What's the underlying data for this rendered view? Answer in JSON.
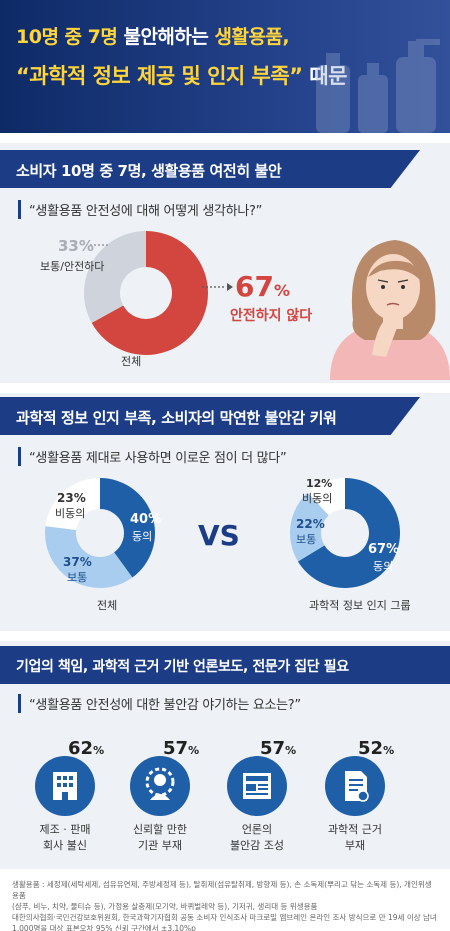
{
  "header": {
    "line1_a": "10명 중 7명",
    "line1_b": " 불안해하는 ",
    "line1_c": "생활용품,",
    "line2_a": "“과학적 정보 제공 및 인지 부족”",
    "line2_b": " 때문"
  },
  "section1": {
    "title": "소비자 10명 중 7명, 생활용품 여전히 불안",
    "question": "“생활용품 안전성에 대해 어떻게 생각하나?”",
    "big_pct": "67",
    "big_unit": "%",
    "big_label": "안전하지 않다",
    "small_pct": "33%",
    "small_label": "보통/안전하다",
    "caption": "전체"
  },
  "section2": {
    "title": "과학적 정보 인지 부족, 소비자의 막연한 불안감 키워",
    "question": "“생활용품 제대로 사용하면 이로운 점이 더 많다”",
    "vs": "VS",
    "left": {
      "caption": "전체",
      "agree_pct": "40%",
      "agree_label": "동의",
      "neutral_pct": "37%",
      "neutral_label": "보통",
      "disagree_pct": "23%",
      "disagree_label": "비동의"
    },
    "right": {
      "caption": "과학적 정보 인지 그룹",
      "agree_pct": "67%",
      "agree_label": "동의",
      "neutral_pct": "22%",
      "neutral_label": "보통",
      "disagree_pct": "12%",
      "disagree_label": "비동의"
    }
  },
  "section3": {
    "title": "기업의 책임, 과학적 근거 기반 언론보도, 전문가 집단 필요",
    "question": "“생활용품 안전성에 대한 불안감 야기하는 요소는?”",
    "factors": [
      {
        "pct": "62",
        "unit": "%",
        "label1": "제조 · 판매",
        "label2": "회사 불신",
        "icon": "building-icon"
      },
      {
        "pct": "57",
        "unit": "%",
        "label1": "신뢰할 만한",
        "label2": "기관 부재",
        "icon": "expert-icon"
      },
      {
        "pct": "57",
        "unit": "%",
        "label1": "언론의",
        "label2": "불안감 조성",
        "icon": "newspaper-icon"
      },
      {
        "pct": "52",
        "unit": "%",
        "label1": "과학적 근거",
        "label2": "부재",
        "icon": "document-icon"
      }
    ]
  },
  "footnote": {
    "line1": "생활용품 : 세정제(세탁세제, 섬유유연제, 주방세정제 등), 탈취제(섬유탈취제, 방향제 등), 손 소독제(뿌리고 닦는 소독제 등), 개인위생용품",
    "line2": "(샴푸, 비누, 치약, 물티슈 등), 가정용 살충제(모기약, 바퀴벌레약 등), 기저귀, 생리대 등 위생용품",
    "line3": "대한의사협회·국민건강보호위원회, 한국과학기자협회 공동 소비자 인식조사 마크로밀 엠브레인 온라인 조사 방식으로 만 19세 이상 남녀",
    "line4": "1,000명을 대상 표본오차 95% 신뢰 구간에서 ±3.10%p"
  },
  "chart_data": [
    {
      "type": "pie",
      "title": "생활용품 안전성에 대해 어떻게 생각하나?",
      "categories": [
        "안전하지 않다",
        "보통/안전하다"
      ],
      "values": [
        67,
        33
      ],
      "caption": "전체"
    },
    {
      "type": "pie",
      "title": "생활용품 제대로 사용하면 이로운 점이 더 많다 (전체)",
      "categories": [
        "동의",
        "보통",
        "비동의"
      ],
      "values": [
        40,
        37,
        23
      ],
      "caption": "전체"
    },
    {
      "type": "pie",
      "title": "생활용품 제대로 사용하면 이로운 점이 더 많다 (과학적 정보 인지 그룹)",
      "categories": [
        "동의",
        "보통",
        "비동의"
      ],
      "values": [
        67,
        22,
        12
      ],
      "caption": "과학적 정보 인지 그룹"
    },
    {
      "type": "bar",
      "title": "생활용품 안전성에 대한 불안감 야기하는 요소는?",
      "categories": [
        "제조 · 판매 회사 불신",
        "신뢰할 만한 기관 부재",
        "언론의 불안감 조성",
        "과학적 근거 부재"
      ],
      "values": [
        62,
        57,
        57,
        52
      ]
    }
  ],
  "colors": {
    "navy": "#1c3d86",
    "red": "#d2463f",
    "blue_dark": "#1f5fa8",
    "blue_light": "#a9cdee",
    "gray": "#cfd4dc"
  }
}
